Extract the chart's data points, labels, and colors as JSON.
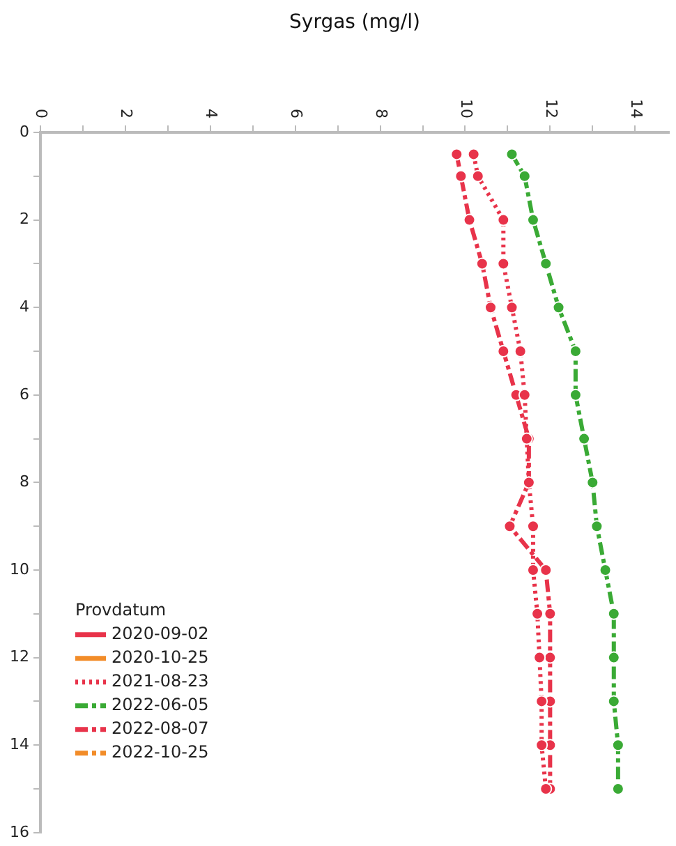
{
  "chart_data": {
    "type": "line",
    "xlabel": "Syrgas (mg/l)",
    "legend_title": "Provdatum",
    "legend": "bottom left",
    "marker": "circle",
    "grid": false,
    "xlim": [
      0,
      14.8
    ],
    "xticks": [
      0,
      {
        "value": 1,
        "label": null
      },
      2,
      {
        "value": 3,
        "label": null
      },
      4,
      {
        "value": 5,
        "label": null
      },
      6,
      {
        "value": 7,
        "label": null
      },
      8,
      {
        "value": 9,
        "label": null
      },
      10,
      {
        "value": 11,
        "label": null
      },
      12,
      {
        "value": 13,
        "label": null
      },
      14
    ],
    "ylim": [
      16,
      0
    ],
    "yticks": [
      0,
      {
        "value": 1,
        "label": null
      },
      2,
      {
        "value": 3,
        "label": null
      },
      4,
      {
        "value": 5,
        "label": null
      },
      6,
      {
        "value": 7,
        "label": null
      },
      8,
      {
        "value": 9,
        "label": null
      },
      10,
      {
        "value": 11,
        "label": null
      },
      12,
      {
        "value": 13,
        "label": null
      },
      14,
      {
        "value": 15,
        "label": null
      },
      16
    ],
    "series": [
      {
        "name": "2020-09-02",
        "color": "#e8334a",
        "line_style": "solid"
      },
      {
        "name": "2020-10-25",
        "color": "#f28c28",
        "line_style": "solid"
      },
      {
        "name": "2021-08-23",
        "color": "#e8334a",
        "line_style": "dotted",
        "x": [
          10.2,
          10.3,
          10.9,
          10.9,
          11.1,
          11.3,
          11.4,
          11.45,
          11.5,
          11.6,
          11.6,
          11.7,
          11.75,
          11.8,
          11.8,
          11.9
        ],
        "values": [
          0.5,
          1,
          2,
          3,
          4,
          5,
          6,
          7,
          8,
          9,
          10,
          11,
          12,
          13,
          14,
          15
        ]
      },
      {
        "name": "2022-06-05",
        "color": "#3aaa35",
        "line_style": "dashdot",
        "x": [
          11.1,
          11.4,
          11.6,
          11.9,
          12.2,
          12.6,
          12.6,
          12.8,
          13.0,
          13.1,
          13.3,
          13.5,
          13.5,
          13.5,
          13.6,
          13.6
        ],
        "values": [
          0.5,
          1,
          2,
          3,
          4,
          5,
          6,
          7,
          8,
          9,
          10,
          11,
          12,
          13,
          14,
          15
        ]
      },
      {
        "name": "2022-08-07",
        "color": "#e8334a",
        "line_style": "dashdot",
        "x": [
          9.8,
          9.9,
          10.1,
          10.4,
          10.6,
          10.9,
          11.2,
          11.5,
          11.5,
          11.05,
          11.9,
          12.0,
          12.0,
          12.0,
          12.0,
          12.0
        ],
        "values": [
          0.5,
          1,
          2,
          3,
          4,
          5,
          6,
          7,
          8,
          9,
          10,
          11,
          12,
          13,
          14,
          15
        ]
      },
      {
        "name": "2022-10-25",
        "color": "#f28c28",
        "line_style": "dashdot"
      }
    ]
  }
}
